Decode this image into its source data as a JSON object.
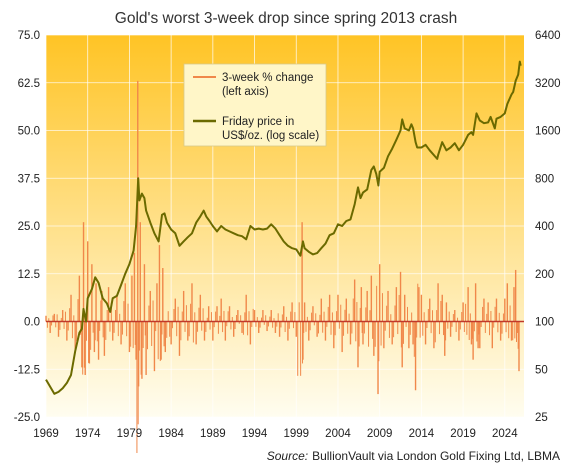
{
  "chart_data": {
    "type": "line",
    "title": "Gold's worst 3-week drop since spring 2013 crash",
    "source_prefix": "Source:",
    "source_text": "BullionVault via London Gold Fixing Ltd, LBMA",
    "left_axis": {
      "ylim": [
        -25.0,
        75.0
      ],
      "ticks": [
        "75.0",
        "62.5",
        "50.0",
        "37.5",
        "25.0",
        "12.5",
        "0.0",
        "-12.5",
        "-25.0"
      ],
      "tick_values": [
        75.0,
        62.5,
        50.0,
        37.5,
        25.0,
        12.5,
        0.0,
        -12.5,
        -25.0
      ]
    },
    "right_axis": {
      "scale": "log",
      "ylim": [
        25,
        6400
      ],
      "ticks": [
        "6400",
        "3200",
        "1600",
        "800",
        "400",
        "200",
        "100",
        "50",
        "25"
      ],
      "tick_values": [
        6400,
        3200,
        1600,
        800,
        400,
        200,
        100,
        50,
        25
      ]
    },
    "x_axis": {
      "xlim": [
        1969,
        2026.3
      ],
      "ticks": [
        "1969",
        "1974",
        "1979",
        "1984",
        "1989",
        "1994",
        "1999",
        "2004",
        "2009",
        "2014",
        "2019",
        "2024"
      ],
      "tick_values": [
        1969,
        1974,
        1979,
        1984,
        1989,
        1994,
        1999,
        2004,
        2009,
        2014,
        2019,
        2024
      ]
    },
    "legend": {
      "placement": "top-center"
    },
    "series": [
      {
        "name": "3-week % change\n(left axis)",
        "color": "#f0884a",
        "style": "bars-from-zero",
        "points": [
          [
            1969.0,
            1.5
          ],
          [
            1969.5,
            -3.0
          ],
          [
            1970.0,
            2.0
          ],
          [
            1970.5,
            -4.0
          ],
          [
            1971.0,
            3.0
          ],
          [
            1971.5,
            -5.0
          ],
          [
            1972.0,
            7.0
          ],
          [
            1972.5,
            -8.0
          ],
          [
            1973.0,
            12.0
          ],
          [
            1973.3,
            -12.0
          ],
          [
            1973.5,
            26.0
          ],
          [
            1973.7,
            -14.0
          ],
          [
            1974.0,
            21.0
          ],
          [
            1974.2,
            -11.0
          ],
          [
            1974.5,
            15.0
          ],
          [
            1974.8,
            -8.0
          ],
          [
            1975.0,
            10.0
          ],
          [
            1975.3,
            -10.0
          ],
          [
            1975.7,
            8.0
          ],
          [
            1976.0,
            -9.0
          ],
          [
            1976.5,
            9.0
          ],
          [
            1977.0,
            -5.0
          ],
          [
            1977.5,
            7.0
          ],
          [
            1978.0,
            -6.0
          ],
          [
            1978.5,
            10.0
          ],
          [
            1979.0,
            -8.0
          ],
          [
            1979.3,
            12.0
          ],
          [
            1979.6,
            18.0
          ],
          [
            1979.8,
            -10.0
          ],
          [
            1980.0,
            63.0
          ],
          [
            1980.1,
            -17.0
          ],
          [
            1980.3,
            26.0
          ],
          [
            1980.5,
            -15.0
          ],
          [
            1980.8,
            15.0
          ],
          [
            1981.0,
            -14.0
          ],
          [
            1981.5,
            8.0
          ],
          [
            1982.0,
            -13.0
          ],
          [
            1982.3,
            10.0
          ],
          [
            1982.6,
            20.0
          ],
          [
            1982.8,
            -10.0
          ],
          [
            1983.0,
            14.0
          ],
          [
            1983.3,
            -8.0
          ],
          [
            1984.0,
            -6.0
          ],
          [
            1984.5,
            6.0
          ],
          [
            1985.0,
            -9.0
          ],
          [
            1985.5,
            8.0
          ],
          [
            1986.0,
            -5.0
          ],
          [
            1986.5,
            10.0
          ],
          [
            1987.0,
            -6.0
          ],
          [
            1987.5,
            7.0
          ],
          [
            1988.0,
            -5.0
          ],
          [
            1988.5,
            4.0
          ],
          [
            1989.0,
            -5.0
          ],
          [
            1989.5,
            4.0
          ],
          [
            1990.0,
            6.0
          ],
          [
            1990.5,
            -5.0
          ],
          [
            1991.0,
            4.0
          ],
          [
            1991.5,
            -4.0
          ],
          [
            1992.0,
            3.0
          ],
          [
            1992.5,
            -3.0
          ],
          [
            1993.0,
            7.0
          ],
          [
            1993.5,
            -6.0
          ],
          [
            1994.0,
            3.0
          ],
          [
            1994.5,
            -3.0
          ],
          [
            1995.0,
            3.0
          ],
          [
            1995.5,
            -2.5
          ],
          [
            1996.0,
            3.0
          ],
          [
            1996.5,
            -3.0
          ],
          [
            1997.0,
            -4.0
          ],
          [
            1997.5,
            4.0
          ],
          [
            1998.0,
            -5.0
          ],
          [
            1998.5,
            5.0
          ],
          [
            1999.0,
            -4.0
          ],
          [
            1999.7,
            26.0
          ],
          [
            1999.8,
            -10.0
          ],
          [
            2000.0,
            5.0
          ],
          [
            2000.5,
            -5.0
          ],
          [
            2001.0,
            4.0
          ],
          [
            2001.5,
            -4.0
          ],
          [
            2002.0,
            6.0
          ],
          [
            2002.5,
            -5.0
          ],
          [
            2003.0,
            7.0
          ],
          [
            2003.5,
            -7.0
          ],
          [
            2004.0,
            7.0
          ],
          [
            2004.5,
            -8.0
          ],
          [
            2005.0,
            6.0
          ],
          [
            2005.5,
            -6.0
          ],
          [
            2006.0,
            11.0
          ],
          [
            2006.4,
            -12.0
          ],
          [
            2006.8,
            9.0
          ],
          [
            2007.0,
            -6.0
          ],
          [
            2007.5,
            8.0
          ],
          [
            2008.0,
            12.0
          ],
          [
            2008.3,
            -9.0
          ],
          [
            2008.8,
            -19.0
          ],
          [
            2009.0,
            15.0
          ],
          [
            2009.5,
            -7.0
          ],
          [
            2010.0,
            8.0
          ],
          [
            2010.5,
            -6.0
          ],
          [
            2011.0,
            9.0
          ],
          [
            2011.5,
            13.0
          ],
          [
            2011.7,
            -12.0
          ],
          [
            2012.0,
            7.0
          ],
          [
            2012.5,
            -7.0
          ],
          [
            2013.0,
            -6.0
          ],
          [
            2013.3,
            -18.0
          ],
          [
            2013.7,
            9.0
          ],
          [
            2014.0,
            7.0
          ],
          [
            2014.5,
            -6.0
          ],
          [
            2015.0,
            6.0
          ],
          [
            2015.5,
            -7.0
          ],
          [
            2016.0,
            10.0
          ],
          [
            2016.5,
            7.0
          ],
          [
            2016.8,
            -9.0
          ],
          [
            2017.0,
            5.0
          ],
          [
            2017.5,
            -4.0
          ],
          [
            2018.0,
            3.0
          ],
          [
            2018.5,
            -5.0
          ],
          [
            2019.0,
            5.0
          ],
          [
            2019.6,
            9.0
          ],
          [
            2020.0,
            -6.0
          ],
          [
            2020.2,
            -10.0
          ],
          [
            2020.5,
            10.0
          ],
          [
            2020.8,
            -7.0
          ],
          [
            2021.0,
            -7.0
          ],
          [
            2021.5,
            6.0
          ],
          [
            2022.0,
            5.0
          ],
          [
            2022.5,
            -7.0
          ],
          [
            2023.0,
            6.0
          ],
          [
            2023.5,
            -5.0
          ],
          [
            2024.0,
            6.0
          ],
          [
            2024.3,
            10.0
          ],
          [
            2024.8,
            -5.0
          ],
          [
            2025.1,
            9.0
          ],
          [
            2025.3,
            13.5
          ],
          [
            2025.5,
            -3.0
          ],
          [
            2025.7,
            -13.0
          ]
        ]
      },
      {
        "name": "Friday price in\nUS$/oz. (log scale)",
        "color": "#6b6a00",
        "style": "line",
        "points": [
          [
            1969.0,
            43
          ],
          [
            1970.0,
            35
          ],
          [
            1970.5,
            36
          ],
          [
            1971.0,
            38
          ],
          [
            1971.5,
            41
          ],
          [
            1972.0,
            46
          ],
          [
            1972.5,
            65
          ],
          [
            1973.0,
            85
          ],
          [
            1973.3,
            90
          ],
          [
            1973.5,
            120
          ],
          [
            1973.8,
            100
          ],
          [
            1974.0,
            140
          ],
          [
            1974.5,
            160
          ],
          [
            1974.9,
            190
          ],
          [
            1975.3,
            175
          ],
          [
            1975.8,
            140
          ],
          [
            1976.3,
            130
          ],
          [
            1976.7,
            115
          ],
          [
            1977.0,
            140
          ],
          [
            1977.5,
            145
          ],
          [
            1978.0,
            170
          ],
          [
            1978.5,
            200
          ],
          [
            1979.0,
            230
          ],
          [
            1979.5,
            280
          ],
          [
            1979.8,
            400
          ],
          [
            1980.05,
            800
          ],
          [
            1980.2,
            580
          ],
          [
            1980.5,
            640
          ],
          [
            1980.8,
            600
          ],
          [
            1981.0,
            500
          ],
          [
            1981.5,
            420
          ],
          [
            1982.0,
            360
          ],
          [
            1982.5,
            320
          ],
          [
            1982.9,
            470
          ],
          [
            1983.2,
            480
          ],
          [
            1983.5,
            420
          ],
          [
            1984.0,
            380
          ],
          [
            1984.5,
            360
          ],
          [
            1985.0,
            300
          ],
          [
            1985.5,
            320
          ],
          [
            1986.0,
            340
          ],
          [
            1986.5,
            360
          ],
          [
            1987.0,
            420
          ],
          [
            1987.5,
            460
          ],
          [
            1987.9,
            500
          ],
          [
            1988.2,
            460
          ],
          [
            1988.6,
            430
          ],
          [
            1989.0,
            400
          ],
          [
            1989.5,
            370
          ],
          [
            1990.0,
            400
          ],
          [
            1990.5,
            380
          ],
          [
            1991.0,
            370
          ],
          [
            1991.5,
            360
          ],
          [
            1992.0,
            350
          ],
          [
            1992.5,
            345
          ],
          [
            1993.0,
            330
          ],
          [
            1993.5,
            400
          ],
          [
            1994.0,
            380
          ],
          [
            1994.5,
            385
          ],
          [
            1995.0,
            380
          ],
          [
            1995.5,
            385
          ],
          [
            1996.0,
            410
          ],
          [
            1996.5,
            385
          ],
          [
            1997.0,
            350
          ],
          [
            1997.5,
            320
          ],
          [
            1998.0,
            300
          ],
          [
            1998.5,
            290
          ],
          [
            1999.0,
            285
          ],
          [
            1999.5,
            260
          ],
          [
            1999.8,
            320
          ],
          [
            2000.0,
            290
          ],
          [
            2000.5,
            275
          ],
          [
            2001.0,
            265
          ],
          [
            2001.5,
            270
          ],
          [
            2002.0,
            290
          ],
          [
            2002.5,
            310
          ],
          [
            2003.0,
            350
          ],
          [
            2003.5,
            360
          ],
          [
            2004.0,
            410
          ],
          [
            2004.5,
            400
          ],
          [
            2005.0,
            430
          ],
          [
            2005.5,
            440
          ],
          [
            2006.0,
            550
          ],
          [
            2006.4,
            700
          ],
          [
            2006.7,
            600
          ],
          [
            2007.0,
            650
          ],
          [
            2007.5,
            680
          ],
          [
            2008.0,
            900
          ],
          [
            2008.3,
            950
          ],
          [
            2008.6,
            850
          ],
          [
            2008.85,
            720
          ],
          [
            2009.0,
            880
          ],
          [
            2009.5,
            930
          ],
          [
            2010.0,
            1100
          ],
          [
            2010.5,
            1230
          ],
          [
            2011.0,
            1400
          ],
          [
            2011.5,
            1600
          ],
          [
            2011.7,
            1880
          ],
          [
            2012.0,
            1650
          ],
          [
            2012.5,
            1600
          ],
          [
            2012.8,
            1750
          ],
          [
            2013.0,
            1650
          ],
          [
            2013.3,
            1350
          ],
          [
            2013.5,
            1250
          ],
          [
            2014.0,
            1250
          ],
          [
            2014.5,
            1300
          ],
          [
            2015.0,
            1200
          ],
          [
            2015.9,
            1060
          ],
          [
            2016.0,
            1120
          ],
          [
            2016.5,
            1350
          ],
          [
            2017.0,
            1200
          ],
          [
            2017.5,
            1250
          ],
          [
            2018.0,
            1330
          ],
          [
            2018.5,
            1200
          ],
          [
            2019.0,
            1300
          ],
          [
            2019.6,
            1500
          ],
          [
            2020.0,
            1560
          ],
          [
            2020.2,
            1500
          ],
          [
            2020.6,
            2050
          ],
          [
            2021.0,
            1850
          ],
          [
            2021.5,
            1780
          ],
          [
            2022.0,
            1800
          ],
          [
            2022.3,
            1950
          ],
          [
            2022.8,
            1650
          ],
          [
            2023.0,
            1900
          ],
          [
            2023.5,
            1950
          ],
          [
            2024.0,
            2050
          ],
          [
            2024.3,
            2350
          ],
          [
            2024.8,
            2700
          ],
          [
            2025.0,
            2800
          ],
          [
            2025.3,
            3300
          ],
          [
            2025.6,
            3600
          ],
          [
            2025.8,
            4350
          ],
          [
            2025.9,
            4100
          ]
        ]
      }
    ]
  }
}
